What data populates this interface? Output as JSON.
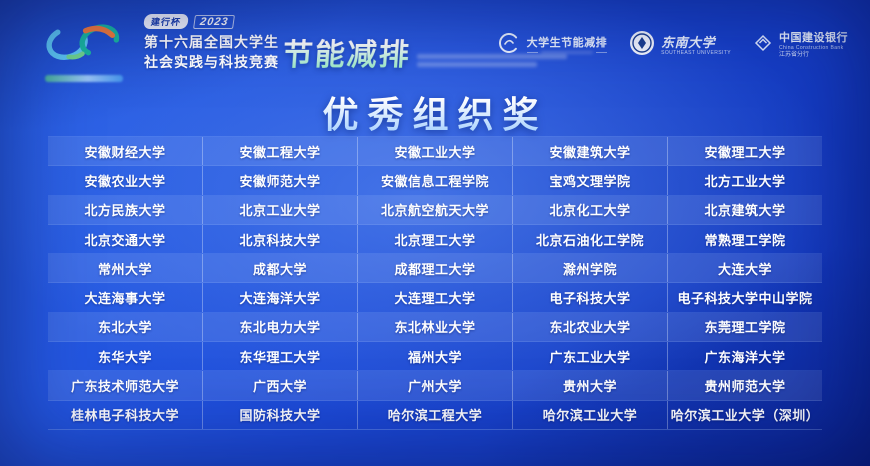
{
  "header": {
    "badge": {
      "cup": "建行杯",
      "year": "2023"
    },
    "event": {
      "line1": "第十六届全国大学生",
      "line2": "社会实践与科技竞赛",
      "highlight": "节能减排"
    },
    "sponsors": [
      {
        "name": "大学生节能减排"
      },
      {
        "name": "东南大学",
        "subtitle": "SOUTHEAST UNIVERSITY"
      },
      {
        "name": "中国建设银行",
        "subtitle": "China Construction Bank",
        "branch": "江苏省分行"
      }
    ]
  },
  "page": {
    "title": "优秀组织奖"
  },
  "table": {
    "columns": 5,
    "rows": [
      [
        "安徽财经大学",
        "安徽工程大学",
        "安徽工业大学",
        "安徽建筑大学",
        "安徽理工大学"
      ],
      [
        "安徽农业大学",
        "安徽师范大学",
        "安徽信息工程学院",
        "宝鸡文理学院",
        "北方工业大学"
      ],
      [
        "北方民族大学",
        "北京工业大学",
        "北京航空航天大学",
        "北京化工大学",
        "北京建筑大学"
      ],
      [
        "北京交通大学",
        "北京科技大学",
        "北京理工大学",
        "北京石油化工学院",
        "常熟理工学院"
      ],
      [
        "常州大学",
        "成都大学",
        "成都理工大学",
        "滁州学院",
        "大连大学"
      ],
      [
        "大连海事大学",
        "大连海洋大学",
        "大连理工大学",
        "电子科技大学",
        "电子科技大学中山学院"
      ],
      [
        "东北大学",
        "东北电力大学",
        "东北林业大学",
        "东北农业大学",
        "东莞理工学院"
      ],
      [
        "东华大学",
        "东华理工大学",
        "福州大学",
        "广东工业大学",
        "广东海洋大学"
      ],
      [
        "广东技术师范大学",
        "广西大学",
        "广州大学",
        "贵州大学",
        "贵州师范大学"
      ],
      [
        "桂林电子科技大学",
        "国防科技大学",
        "哈尔滨工程大学",
        "哈尔滨工业大学",
        "哈尔滨工业大学（深圳）"
      ]
    ]
  },
  "colors": {
    "background_light": "#2a62e8",
    "background_dark": "#0f31b2",
    "row_stripe": "rgba(215,232,255,0.12)",
    "text": "#ffffff",
    "highlight_gradient_end": "#8fe8c0"
  }
}
